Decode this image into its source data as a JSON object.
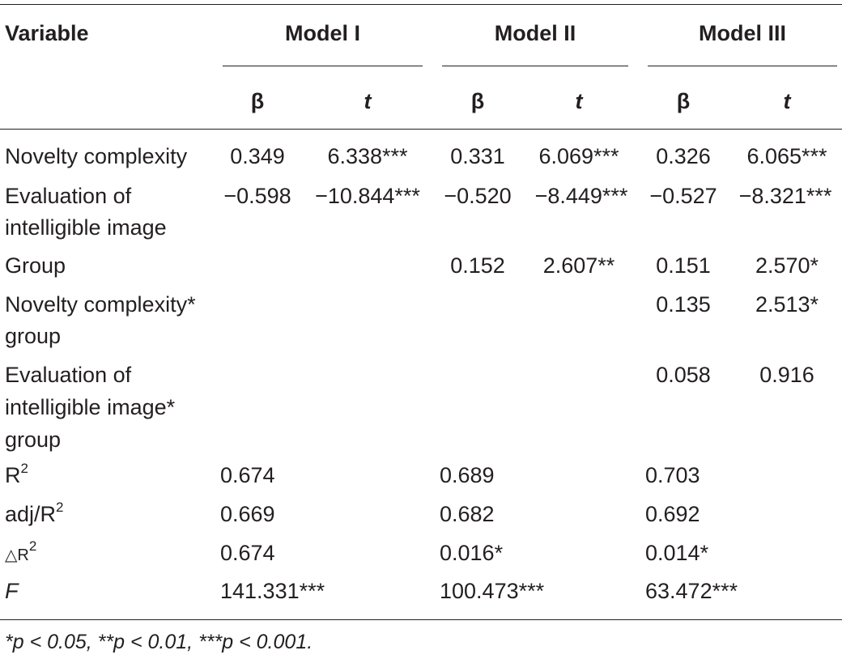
{
  "headers": {
    "variable": "Variable",
    "models": [
      "Model I",
      "Model II",
      "Model III"
    ],
    "beta": "β",
    "t": "t"
  },
  "rows": [
    {
      "label": [
        "Novelty complexity"
      ],
      "m1b": "0.349",
      "m1t": "6.338***",
      "m2b": "0.331",
      "m2t": "6.069***",
      "m3b": "0.326",
      "m3t": "6.065***"
    },
    {
      "label": [
        "Evaluation of",
        "intelligible image"
      ],
      "m1b": "−0.598",
      "m1t": "−10.844***",
      "m2b": "−0.520",
      "m2t": "−8.449***",
      "m3b": "−0.527",
      "m3t": "−8.321***"
    },
    {
      "label": [
        "Group"
      ],
      "m2b": "0.152",
      "m2t": "2.607**",
      "m3b": "0.151",
      "m3t": "2.570*"
    },
    {
      "label": [
        "Novelty complexity*",
        "group"
      ],
      "m3b": "0.135",
      "m3t": "2.513*"
    },
    {
      "label": [
        "Evaluation of",
        "intelligible image*",
        "group"
      ],
      "m3b": "0.058",
      "m3t": "0.916"
    }
  ],
  "summary": [
    {
      "label": "R",
      "sup": "2",
      "values": [
        "0.674",
        "0.689",
        "0.703"
      ]
    },
    {
      "label": "adj/R",
      "sup": "2",
      "values": [
        "0.669",
        "0.682",
        "0.692"
      ]
    },
    {
      "label": "△R",
      "sup": "2",
      "values": [
        "0.674",
        "0.016*",
        "0.014*"
      ]
    },
    {
      "label": "F",
      "italic": true,
      "values": [
        "141.331***",
        "100.473***",
        "63.472***"
      ]
    }
  ],
  "footnote": "*p < 0.05, **p < 0.01, ***p < 0.001."
}
